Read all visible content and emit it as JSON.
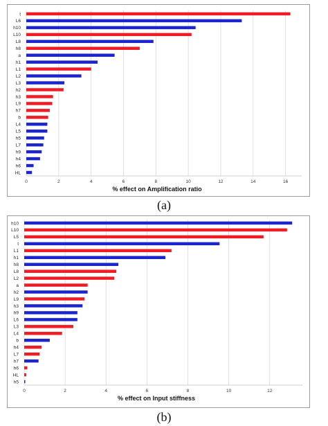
{
  "captions": {
    "a": "(a)",
    "b": "(b)"
  },
  "colors": {
    "red": "#ee1c24",
    "blue": "#1c25cc",
    "grid": "#d9d9d9"
  },
  "chart_data": [
    {
      "type": "bar",
      "orientation": "horizontal",
      "title": "",
      "xlabel": "% effect on Amplification ratio",
      "ylabel": "",
      "xlim": [
        0,
        17
      ],
      "xticks": [
        0,
        2,
        4,
        6,
        8,
        10,
        12,
        14,
        16
      ],
      "grid": true,
      "categories": [
        "t",
        "L6",
        "h10",
        "L10",
        "L8",
        "h8",
        "a",
        "h1",
        "L1",
        "L2",
        "L3",
        "h2",
        "h3",
        "L9",
        "h7",
        "b",
        "L4",
        "L5",
        "h5",
        "L7",
        "h9",
        "h4",
        "h6",
        "HL"
      ],
      "values": [
        16.3,
        13.3,
        10.45,
        10.2,
        7.85,
        7.0,
        5.45,
        4.4,
        4.0,
        3.4,
        2.35,
        2.3,
        1.65,
        1.6,
        1.45,
        1.35,
        1.3,
        1.3,
        1.1,
        1.05,
        0.95,
        0.85,
        0.45,
        0.35
      ],
      "bar_colors": [
        "red",
        "blue",
        "blue",
        "red",
        "blue",
        "red",
        "blue",
        "blue",
        "red",
        "blue",
        "blue",
        "red",
        "red",
        "red",
        "red",
        "red",
        "blue",
        "blue",
        "blue",
        "blue",
        "blue",
        "blue",
        "blue",
        "blue"
      ]
    },
    {
      "type": "bar",
      "orientation": "horizontal",
      "title": "",
      "xlabel": "% effect on Input stiffness",
      "ylabel": "",
      "xlim": [
        0,
        13.6
      ],
      "xticks": [
        0,
        2,
        4,
        6,
        8,
        10,
        12
      ],
      "grid": true,
      "categories": [
        "h10",
        "L10",
        "L5",
        "t",
        "L1",
        "h1",
        "h8",
        "L8",
        "L2",
        "a",
        "h2",
        "L9",
        "h3",
        "h9",
        "L6",
        "L3",
        "L4",
        "b",
        "h4",
        "L7",
        "h7",
        "h6",
        "HL",
        "h5"
      ],
      "values": [
        13.1,
        12.85,
        11.7,
        9.55,
        7.2,
        6.9,
        4.6,
        4.5,
        4.4,
        3.1,
        3.1,
        2.95,
        2.85,
        2.6,
        2.6,
        2.4,
        1.85,
        1.25,
        0.85,
        0.75,
        0.7,
        0.15,
        0.1,
        0.05
      ],
      "bar_colors": [
        "blue",
        "red",
        "red",
        "blue",
        "red",
        "blue",
        "blue",
        "red",
        "red",
        "red",
        "blue",
        "red",
        "blue",
        "blue",
        "blue",
        "red",
        "red",
        "blue",
        "red",
        "red",
        "blue",
        "red",
        "red",
        "blue"
      ]
    }
  ]
}
